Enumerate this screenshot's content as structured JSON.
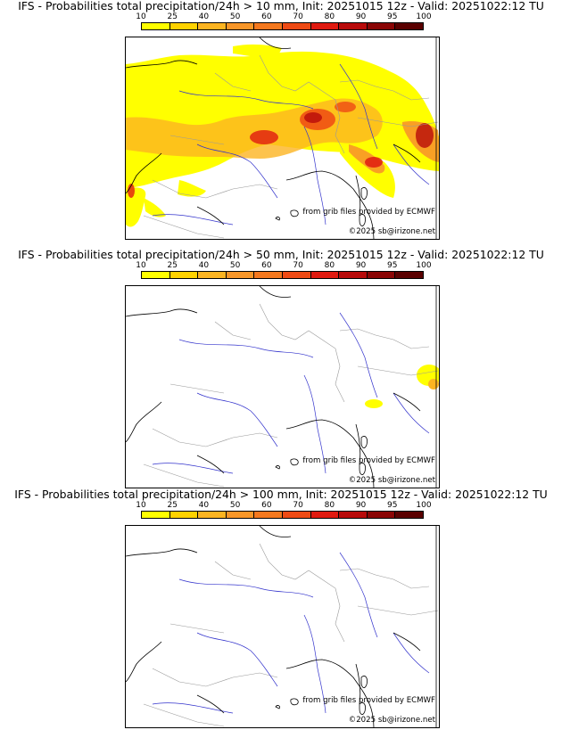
{
  "colorbar": {
    "ticks": [
      "10",
      "25",
      "40",
      "50",
      "60",
      "70",
      "80",
      "90",
      "95",
      "100"
    ],
    "colors": [
      "#ffff00",
      "#ffd200",
      "#fcb421",
      "#f89628",
      "#f4781e",
      "#ee4a14",
      "#e01a10",
      "#b80a0a",
      "#8a0505",
      "#5a0000"
    ]
  },
  "panels": [
    {
      "title": "IFS - Probabilities total precipitation/24h > 10 mm, Init: 20251015 12z - Valid: 20251022:12 TU",
      "threshold": "10 mm",
      "credit_source": "from grib files provided by ECMWF",
      "credit_copyright": "©2025 sb@irizone.net"
    },
    {
      "title": "IFS - Probabilities total precipitation/24h > 50 mm, Init: 20251015 12z - Valid: 20251022:12 TU",
      "threshold": "50 mm",
      "credit_source": "from grib files provided by ECMWF",
      "credit_copyright": "©2025 sb@irizone.net"
    },
    {
      "title": "IFS - Probabilities total precipitation/24h > 100 mm, Init: 20251015 12z - Valid: 20251022:12 TU",
      "threshold": "100 mm",
      "credit_source": "from grib files provided by ECMWF",
      "credit_copyright": "©2025 sb@irizone.net"
    }
  ],
  "map_colors": {
    "coast": "#000000",
    "borders": "#9a9a9a",
    "rivers": "#3333cc"
  }
}
